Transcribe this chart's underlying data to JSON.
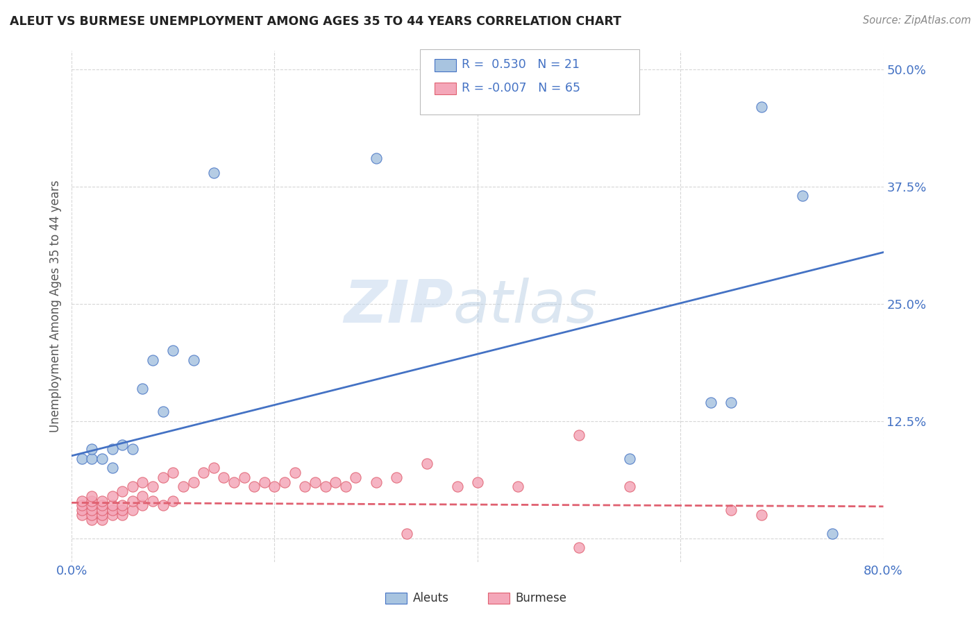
{
  "title": "ALEUT VS BURMESE UNEMPLOYMENT AMONG AGES 35 TO 44 YEARS CORRELATION CHART",
  "source": "Source: ZipAtlas.com",
  "ylabel": "Unemployment Among Ages 35 to 44 years",
  "xlim": [
    0.0,
    0.8
  ],
  "ylim": [
    -0.025,
    0.52
  ],
  "xticks": [
    0.0,
    0.2,
    0.4,
    0.6,
    0.8
  ],
  "xticklabels": [
    "0.0%",
    "",
    "",
    "",
    "80.0%"
  ],
  "yticks": [
    0.0,
    0.125,
    0.25,
    0.375,
    0.5
  ],
  "yticklabels": [
    "",
    "12.5%",
    "25.0%",
    "37.5%",
    "50.0%"
  ],
  "aleuts_R": 0.53,
  "aleuts_N": 21,
  "burmese_R": -0.007,
  "burmese_N": 65,
  "aleuts_color": "#a8c4e0",
  "aleuts_line_color": "#4472c4",
  "burmese_color": "#f4a7b9",
  "burmese_line_color": "#e06070",
  "legend_text_color": "#4472c4",
  "watermark_zip": "ZIP",
  "watermark_atlas": "atlas",
  "background_color": "#ffffff",
  "aleuts_x": [
    0.01,
    0.02,
    0.02,
    0.03,
    0.04,
    0.04,
    0.05,
    0.06,
    0.07,
    0.08,
    0.09,
    0.12,
    0.14,
    0.3,
    0.55,
    0.63,
    0.65,
    0.68,
    0.72,
    0.75,
    0.1
  ],
  "aleuts_y": [
    0.085,
    0.085,
    0.095,
    0.085,
    0.095,
    0.075,
    0.1,
    0.095,
    0.16,
    0.19,
    0.135,
    0.19,
    0.39,
    0.405,
    0.085,
    0.145,
    0.145,
    0.46,
    0.365,
    0.005,
    0.2
  ],
  "burmese_x": [
    0.01,
    0.01,
    0.01,
    0.01,
    0.02,
    0.02,
    0.02,
    0.02,
    0.02,
    0.02,
    0.03,
    0.03,
    0.03,
    0.03,
    0.03,
    0.04,
    0.04,
    0.04,
    0.04,
    0.05,
    0.05,
    0.05,
    0.05,
    0.06,
    0.06,
    0.06,
    0.07,
    0.07,
    0.07,
    0.08,
    0.08,
    0.09,
    0.09,
    0.1,
    0.1,
    0.11,
    0.12,
    0.13,
    0.14,
    0.15,
    0.16,
    0.17,
    0.18,
    0.19,
    0.2,
    0.21,
    0.22,
    0.23,
    0.24,
    0.25,
    0.26,
    0.27,
    0.28,
    0.3,
    0.32,
    0.35,
    0.38,
    0.4,
    0.44,
    0.5,
    0.55,
    0.65,
    0.68,
    0.5,
    0.33
  ],
  "burmese_y": [
    0.025,
    0.03,
    0.035,
    0.04,
    0.02,
    0.025,
    0.03,
    0.035,
    0.04,
    0.045,
    0.02,
    0.025,
    0.03,
    0.035,
    0.04,
    0.025,
    0.03,
    0.035,
    0.045,
    0.025,
    0.03,
    0.035,
    0.05,
    0.03,
    0.04,
    0.055,
    0.035,
    0.045,
    0.06,
    0.04,
    0.055,
    0.035,
    0.065,
    0.04,
    0.07,
    0.055,
    0.06,
    0.07,
    0.075,
    0.065,
    0.06,
    0.065,
    0.055,
    0.06,
    0.055,
    0.06,
    0.07,
    0.055,
    0.06,
    0.055,
    0.06,
    0.055,
    0.065,
    0.06,
    0.065,
    0.08,
    0.055,
    0.06,
    0.055,
    0.11,
    0.055,
    0.03,
    0.025,
    -0.01,
    0.005
  ],
  "aleuts_line_x": [
    0.0,
    0.8
  ],
  "aleuts_line_y": [
    0.088,
    0.305
  ],
  "burmese_line_x": [
    0.0,
    0.8
  ],
  "burmese_line_y": [
    0.038,
    0.034
  ]
}
